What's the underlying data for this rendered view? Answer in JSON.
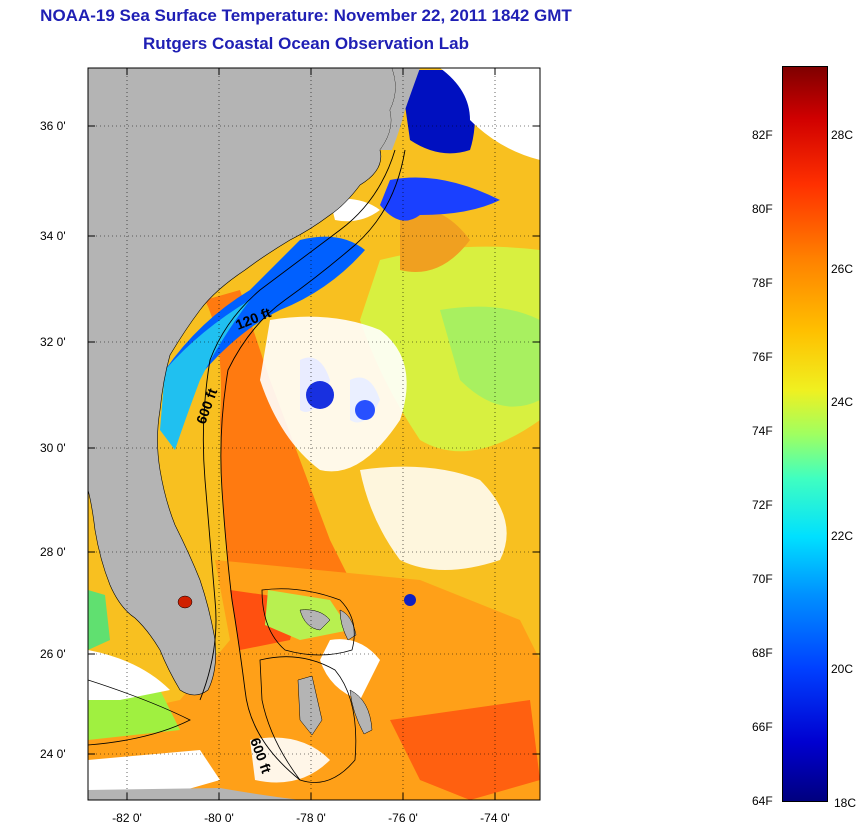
{
  "title": {
    "line1": "NOAA-19 Sea Surface Temperature:  November 22, 2011 1842 GMT",
    "line2": "Rutgers Coastal Ocean Observation Lab"
  },
  "map": {
    "lat_labels": [
      "36 0'",
      "34 0'",
      "32 0'",
      "30 0'",
      "28 0'",
      "26 0'",
      "24 0'"
    ],
    "lon_labels": [
      "-82 0'",
      "-80 0'",
      "-78 0'",
      "-76 0'",
      "-74 0'"
    ],
    "contour_labels": [
      "120 ft",
      "600 ft",
      "600 ft"
    ],
    "land_color": "#b4b4b4",
    "cloud_color": "#ffffff"
  },
  "colorbar": {
    "fahrenheit_labels": [
      "82F",
      "80F",
      "78F",
      "76F",
      "74F",
      "72F",
      "70F",
      "68F",
      "66F",
      "64F"
    ],
    "celsius_labels": [
      "28C",
      "26C",
      "24C",
      "22C",
      "20C",
      "18C"
    ]
  }
}
